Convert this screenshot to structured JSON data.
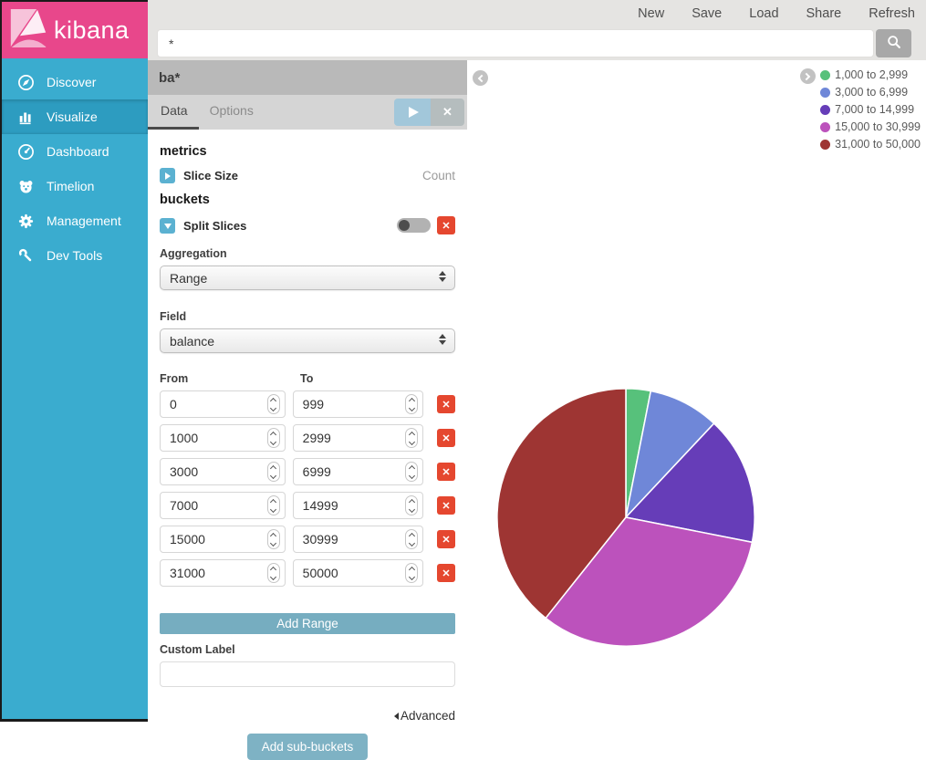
{
  "topbar": {
    "menu": [
      "New",
      "Save",
      "Load",
      "Share",
      "Refresh"
    ],
    "search_value": "*"
  },
  "sidebar": {
    "logo_text": "kibana",
    "items": [
      {
        "label": "Discover",
        "icon": "compass-icon",
        "active": false
      },
      {
        "label": "Visualize",
        "icon": "bar-chart-icon",
        "active": true
      },
      {
        "label": "Dashboard",
        "icon": "gauge-icon",
        "active": false
      },
      {
        "label": "Timelion",
        "icon": "bear-icon",
        "active": false
      },
      {
        "label": "Management",
        "icon": "gear-icon",
        "active": false
      },
      {
        "label": "Dev Tools",
        "icon": "wrench-icon",
        "active": false
      }
    ]
  },
  "panel": {
    "title": "ba*",
    "tabs": [
      {
        "label": "Data",
        "active": true
      },
      {
        "label": "Options",
        "active": false
      }
    ],
    "metrics_heading": "metrics",
    "slice_size_label": "Slice Size",
    "slice_size_value": "Count",
    "buckets_heading": "buckets",
    "split_slices_label": "Split Slices",
    "aggregation_label": "Aggregation",
    "aggregation_value": "Range",
    "field_label": "Field",
    "field_value": "balance",
    "from_label": "From",
    "to_label": "To",
    "ranges": [
      {
        "from": "0",
        "to": "999"
      },
      {
        "from": "1000",
        "to": "2999"
      },
      {
        "from": "3000",
        "to": "6999"
      },
      {
        "from": "7000",
        "to": "14999"
      },
      {
        "from": "15000",
        "to": "30999"
      },
      {
        "from": "31000",
        "to": "50000"
      }
    ],
    "add_range_label": "Add Range",
    "custom_label_label": "Custom Label",
    "custom_label_value": "",
    "advanced_label": "Advanced",
    "add_subbuckets_label": "Add sub-buckets"
  },
  "chart_data": {
    "type": "pie",
    "title": "",
    "legend_position": "right",
    "direction": "clockwise",
    "start_angle_deg": 0,
    "slices": [
      {
        "label": "1,000 to 2,999",
        "percent": 3.1,
        "color": "#57c17b"
      },
      {
        "label": "3,000 to 6,999",
        "percent": 8.9,
        "color": "#6f87d8"
      },
      {
        "label": "7,000 to 14,999",
        "percent": 16.1,
        "color": "#663db8"
      },
      {
        "label": "15,000 to 30,999",
        "percent": 32.6,
        "color": "#bc52bc"
      },
      {
        "label": "31,000 to 50,000",
        "percent": 39.3,
        "color": "#9e3533"
      }
    ]
  },
  "colors": {
    "brand_pink": "#e8478b",
    "sidebar_teal": "#3aaccf",
    "sidebar_active": "#2d9cc0",
    "action_teal": "#76adc0",
    "danger_red": "#e5472f"
  }
}
